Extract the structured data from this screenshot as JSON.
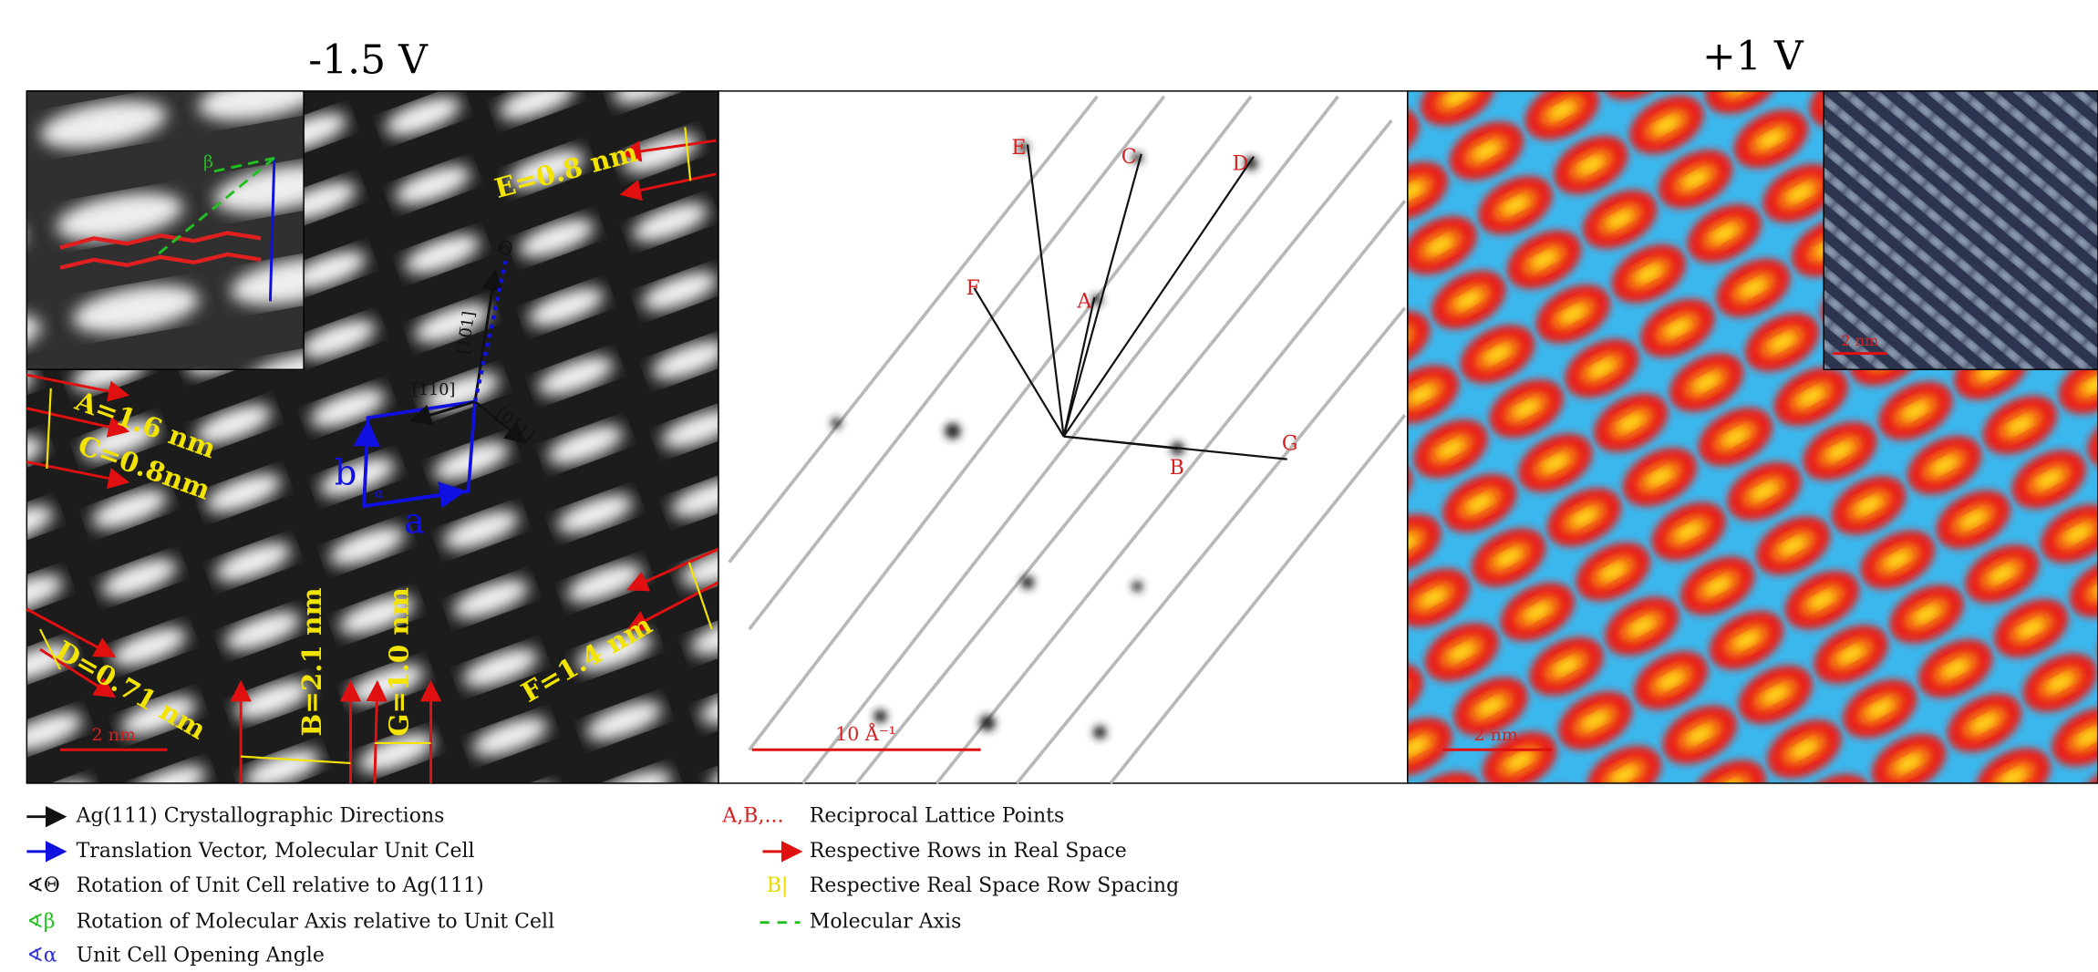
{
  "titles": [
    "-1.5 V",
    "+1 V"
  ],
  "panel_real": {
    "labels": [
      "E=0.8 nm",
      "A=1.6 nm",
      "C=0.8nm",
      "B=2.1 nm",
      "G=1.0 nm",
      "D=0.71 nm",
      "F=1.4 nm"
    ],
    "scale_bar": "2 nm",
    "directions": [
      "[10̅1]",
      "[̅110]",
      "[01̅1]"
    ],
    "angles": [
      "Θ",
      "α",
      "β"
    ],
    "vectors": [
      "a",
      "b"
    ]
  },
  "panel_fft": {
    "points": [
      "E",
      "C",
      "D",
      "F",
      "A",
      "B",
      "G"
    ],
    "scale_bar": "10 Å⁻¹"
  },
  "panel_pos": {
    "scale_bar": "2 nm",
    "inset_scale_bar": "2 nm"
  },
  "legend": {
    "left": [
      {
        "symbol": "",
        "text": "Ag(111) Crystallographic Directions"
      },
      {
        "symbol": "",
        "text": "Translation Vector, Molecular Unit Cell"
      },
      {
        "symbol": "∢Θ",
        "text": "Rotation of Unit Cell relative to Ag(111)"
      },
      {
        "symbol": "∢β",
        "text": "Rotation of Molecular Axis relative to Unit Cell"
      },
      {
        "symbol": "∢α",
        "text": "Unit Cell Opening Angle"
      }
    ],
    "right": [
      {
        "symbol": "A,B,...",
        "text": "Reciprocal Lattice Points"
      },
      {
        "symbol": "",
        "text": "Respective Rows in Real Space"
      },
      {
        "symbol": "B|",
        "text": "Respective Real Space Row Spacing"
      },
      {
        "symbol": "",
        "text": "Molecular Axis"
      }
    ]
  }
}
